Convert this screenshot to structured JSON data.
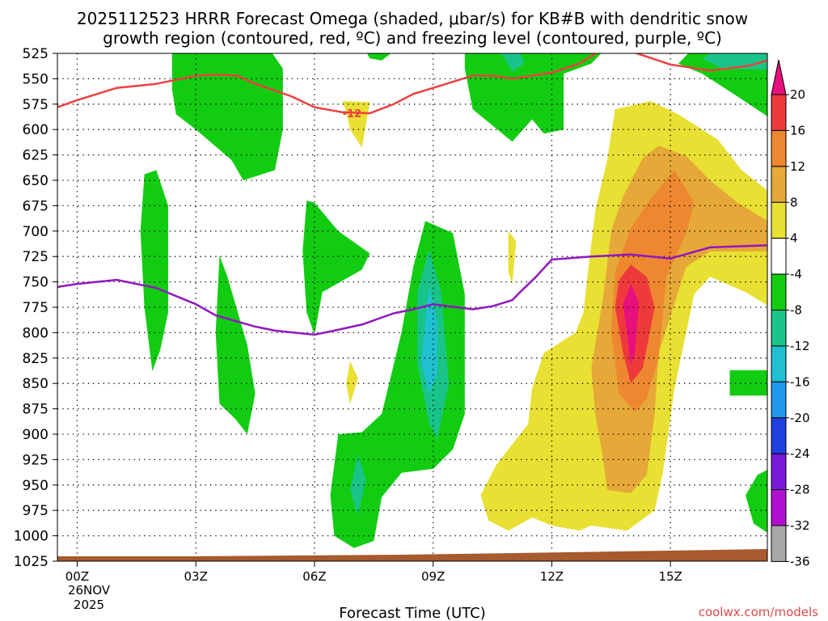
{
  "chart_data": {
    "type": "contour",
    "title_line1": "2025112523 HRRR Forecast Omega (shaded, μbar/s) for KB#B with dendritic snow",
    "title_line2": "growth region (contoured, red, ºC) and freezing level (contoured, purple, ºC)",
    "xlabel": "Forecast Time (UTC)",
    "credit": "coolwx.com/models",
    "x_ticks": [
      {
        "hour": 0,
        "label": "00Z"
      },
      {
        "hour": 3,
        "label": "03Z"
      },
      {
        "hour": 6,
        "label": "06Z"
      },
      {
        "hour": 9,
        "label": "09Z"
      },
      {
        "hour": 12,
        "label": "12Z"
      },
      {
        "hour": 15,
        "label": "15Z"
      }
    ],
    "x_date_line1": "26NOV",
    "x_date_line2": "2025",
    "x_range_hours": [
      -0.5,
      17.45
    ],
    "y_ticks": [
      525,
      550,
      575,
      600,
      625,
      650,
      675,
      700,
      725,
      750,
      775,
      800,
      825,
      850,
      875,
      900,
      925,
      950,
      975,
      1000,
      1025
    ],
    "y_range_hPa": [
      525,
      1025
    ],
    "colorbar": {
      "labels": [
        "20",
        "16",
        "12",
        "8",
        "4",
        "-4",
        "-8",
        "-12",
        "-16",
        "-20",
        "-24",
        "-28",
        "-32",
        "-36"
      ],
      "bins": [
        {
          "lo": 20,
          "hi": 24,
          "color": "#e8107c"
        },
        {
          "lo": 16,
          "hi": 20,
          "color": "#ee3a3a"
        },
        {
          "lo": 12,
          "hi": 16,
          "color": "#ee8830"
        },
        {
          "lo": 8,
          "hi": 12,
          "color": "#e6a838"
        },
        {
          "lo": 4,
          "hi": 8,
          "color": "#e8e032"
        },
        {
          "lo": -4,
          "hi": 4,
          "color": "#ffffff"
        },
        {
          "lo": -8,
          "hi": -4,
          "color": "#12cc12"
        },
        {
          "lo": -12,
          "hi": -8,
          "color": "#18c488"
        },
        {
          "lo": -16,
          "hi": -12,
          "color": "#20c0d2"
        },
        {
          "lo": -20,
          "hi": -16,
          "color": "#2098ee"
        },
        {
          "lo": -24,
          "hi": -20,
          "color": "#2040e0"
        },
        {
          "lo": -28,
          "hi": -24,
          "color": "#7818d8"
        },
        {
          "lo": -32,
          "hi": -28,
          "color": "#b010d0"
        },
        {
          "lo": -36,
          "hi": -32,
          "color": "#a8a8a8"
        }
      ]
    },
    "dgz_contour": {
      "color": "#ee4040",
      "value_label": "-12",
      "label_at": [
        6.95,
        584
      ],
      "segments": [
        [
          [
            -0.5,
            578
          ],
          [
            0,
            571
          ],
          [
            1,
            559
          ],
          [
            2,
            555
          ],
          [
            3,
            547
          ],
          [
            3.5,
            546
          ],
          [
            4.05,
            547
          ],
          [
            4.5,
            555
          ],
          [
            5.4,
            567
          ],
          [
            6.0,
            578
          ],
          [
            6.7,
            583
          ],
          [
            7.4,
            584
          ],
          [
            8.0,
            575
          ],
          [
            8.5,
            565
          ],
          [
            9.0,
            559
          ],
          [
            10.0,
            547
          ],
          [
            10.5,
            547
          ],
          [
            11.0,
            550
          ],
          [
            12.0,
            544
          ],
          [
            12.7,
            535
          ],
          [
            13.2,
            523
          ]
        ],
        [
          [
            14.0,
            523
          ],
          [
            15.0,
            536
          ],
          [
            16.0,
            542
          ],
          [
            17.0,
            537
          ],
          [
            17.45,
            532
          ]
        ]
      ]
    },
    "freezing_level": {
      "color": "#9018c0",
      "points": [
        [
          -0.5,
          755
        ],
        [
          0,
          752
        ],
        [
          1,
          748
        ],
        [
          2,
          756
        ],
        [
          3,
          772
        ],
        [
          3.5,
          783
        ],
        [
          4.5,
          794
        ],
        [
          5.0,
          798
        ],
        [
          6.0,
          802
        ],
        [
          6.5,
          798
        ],
        [
          7.2,
          792
        ],
        [
          8.0,
          781
        ],
        [
          8.5,
          777
        ],
        [
          9.0,
          772
        ],
        [
          10.0,
          777
        ],
        [
          10.5,
          774
        ],
        [
          11.0,
          768
        ],
        [
          11.2,
          760
        ],
        [
          11.6,
          745
        ],
        [
          12.0,
          728
        ],
        [
          13.0,
          725
        ],
        [
          14.0,
          723
        ],
        [
          15.0,
          727
        ],
        [
          16.0,
          716
        ],
        [
          17.45,
          714
        ]
      ]
    },
    "omega_regions": [
      {
        "value": -6,
        "poly": [
          [
            2.4,
            523
          ],
          [
            4.9,
            523
          ],
          [
            5.2,
            540
          ],
          [
            5.2,
            600
          ],
          [
            5.0,
            640
          ],
          [
            4.2,
            650
          ],
          [
            3.9,
            630
          ],
          [
            3.0,
            600
          ],
          [
            2.5,
            585
          ],
          [
            2.4,
            560
          ]
        ]
      },
      {
        "value": -6,
        "poly": [
          [
            7.3,
            523
          ],
          [
            8.0,
            523
          ],
          [
            7.7,
            532
          ],
          [
            7.4,
            530
          ]
        ]
      },
      {
        "value": -6,
        "poly": [
          [
            9.8,
            523
          ],
          [
            13.3,
            523
          ],
          [
            13.0,
            535
          ],
          [
            12.3,
            545
          ],
          [
            12.3,
            600
          ],
          [
            11.8,
            604
          ],
          [
            11.5,
            590
          ],
          [
            11.0,
            612
          ],
          [
            10.0,
            580
          ],
          [
            9.8,
            540
          ]
        ]
      },
      {
        "value": -10,
        "poly": [
          [
            10.7,
            523
          ],
          [
            11.2,
            523
          ],
          [
            11.3,
            535
          ],
          [
            11.0,
            543
          ],
          [
            10.8,
            530
          ]
        ]
      },
      {
        "value": -6,
        "poly": [
          [
            16.7,
            523
          ],
          [
            17.45,
            523
          ],
          [
            17.45,
            587
          ],
          [
            16.6,
            565
          ],
          [
            15.8,
            545
          ],
          [
            15.2,
            535
          ],
          [
            15.5,
            523
          ]
        ]
      },
      {
        "value": -10,
        "poly": [
          [
            16.1,
            523
          ],
          [
            17.45,
            523
          ],
          [
            17.45,
            541
          ],
          [
            16.3,
            540
          ],
          [
            15.8,
            530
          ]
        ]
      },
      {
        "value": -6,
        "poly": [
          [
            1.7,
            644
          ],
          [
            2.0,
            640
          ],
          [
            2.3,
            675
          ],
          [
            2.3,
            780
          ],
          [
            2.1,
            817
          ],
          [
            1.9,
            838
          ],
          [
            1.7,
            775
          ],
          [
            1.6,
            700
          ]
        ]
      },
      {
        "value": -6,
        "poly": [
          [
            3.6,
            724
          ],
          [
            3.8,
            745
          ],
          [
            4.3,
            812
          ],
          [
            4.5,
            860
          ],
          [
            4.3,
            900
          ],
          [
            4.0,
            885
          ],
          [
            3.6,
            870
          ],
          [
            3.5,
            800
          ]
        ]
      },
      {
        "value": -6,
        "poly": [
          [
            5.8,
            670
          ],
          [
            6.0,
            672
          ],
          [
            6.6,
            700
          ],
          [
            7.4,
            722
          ],
          [
            7.2,
            738
          ],
          [
            6.2,
            760
          ],
          [
            6.0,
            802
          ],
          [
            5.8,
            780
          ],
          [
            5.7,
            720
          ]
        ]
      },
      {
        "value": -6,
        "poly": [
          [
            8.8,
            690
          ],
          [
            9.5,
            702
          ],
          [
            9.8,
            762
          ],
          [
            9.8,
            880
          ],
          [
            9.5,
            915
          ],
          [
            9.0,
            934
          ],
          [
            8.2,
            938
          ],
          [
            7.7,
            962
          ],
          [
            7.5,
            1005
          ],
          [
            7.0,
            1012
          ],
          [
            6.5,
            1000
          ],
          [
            6.4,
            960
          ],
          [
            6.6,
            900
          ],
          [
            7.2,
            898
          ],
          [
            7.7,
            880
          ],
          [
            8.2,
            800
          ],
          [
            8.5,
            735
          ]
        ]
      },
      {
        "value": -10,
        "poly": [
          [
            8.9,
            718
          ],
          [
            9.2,
            760
          ],
          [
            9.4,
            850
          ],
          [
            9.1,
            905
          ],
          [
            8.9,
            890
          ],
          [
            8.6,
            830
          ],
          [
            8.6,
            760
          ]
        ]
      },
      {
        "value": -14,
        "poly": [
          [
            8.9,
            755
          ],
          [
            9.1,
            790
          ],
          [
            9.1,
            840
          ],
          [
            8.9,
            860
          ],
          [
            8.7,
            830
          ],
          [
            8.8,
            790
          ]
        ]
      },
      {
        "value": -10,
        "poly": [
          [
            7.1,
            920
          ],
          [
            7.3,
            945
          ],
          [
            7.1,
            980
          ],
          [
            6.9,
            955
          ]
        ]
      },
      {
        "value": -6,
        "poly": [
          [
            16.5,
            837
          ],
          [
            17.45,
            837
          ],
          [
            17.45,
            862
          ],
          [
            16.5,
            862
          ]
        ]
      },
      {
        "value": -6,
        "poly": [
          [
            17.2,
            940
          ],
          [
            17.45,
            935
          ],
          [
            17.45,
            997
          ],
          [
            17.1,
            988
          ],
          [
            16.9,
            960
          ]
        ]
      },
      {
        "value": 6,
        "poly": [
          [
            6.7,
            572
          ],
          [
            7.4,
            573
          ],
          [
            7.3,
            595
          ],
          [
            7.2,
            618
          ],
          [
            6.9,
            600
          ],
          [
            6.8,
            582
          ]
        ]
      },
      {
        "value": 6,
        "poly": [
          [
            10.9,
            700
          ],
          [
            11.1,
            710
          ],
          [
            11.0,
            752
          ],
          [
            10.9,
            740
          ]
        ]
      },
      {
        "value": 6,
        "poly": [
          [
            6.9,
            828
          ],
          [
            7.1,
            845
          ],
          [
            6.9,
            870
          ],
          [
            6.8,
            850
          ]
        ]
      },
      {
        "value": 6,
        "poly": [
          [
            13.6,
            580
          ],
          [
            14.5,
            572
          ],
          [
            15.2,
            585
          ],
          [
            16.2,
            610
          ],
          [
            16.8,
            640
          ],
          [
            17.45,
            660
          ],
          [
            17.45,
            773
          ],
          [
            16.9,
            760
          ],
          [
            16.0,
            745
          ],
          [
            15.6,
            762
          ],
          [
            15.1,
            855
          ],
          [
            14.8,
            940
          ],
          [
            14.6,
            975
          ],
          [
            13.9,
            995
          ],
          [
            13.0,
            990
          ],
          [
            12.7,
            995
          ],
          [
            12.0,
            990
          ],
          [
            11.5,
            982
          ],
          [
            10.9,
            995
          ],
          [
            10.4,
            985
          ],
          [
            10.2,
            960
          ],
          [
            10.6,
            930
          ],
          [
            11.4,
            890
          ],
          [
            11.5,
            855
          ],
          [
            11.8,
            820
          ],
          [
            12.0,
            815
          ],
          [
            12.6,
            800
          ],
          [
            12.8,
            780
          ],
          [
            12.9,
            745
          ],
          [
            13.1,
            680
          ],
          [
            13.4,
            630
          ]
        ]
      },
      {
        "value": 10,
        "poly": [
          [
            14.7,
            616
          ],
          [
            15.4,
            626
          ],
          [
            16.0,
            650
          ],
          [
            16.7,
            672
          ],
          [
            17.45,
            690
          ],
          [
            17.45,
            720
          ],
          [
            16.4,
            720
          ],
          [
            16.0,
            720
          ],
          [
            15.4,
            735
          ],
          [
            14.7,
            820
          ],
          [
            14.6,
            880
          ],
          [
            14.4,
            940
          ],
          [
            14.0,
            958
          ],
          [
            13.4,
            955
          ],
          [
            13.3,
            925
          ],
          [
            13.1,
            880
          ],
          [
            13.0,
            835
          ],
          [
            13.3,
            765
          ],
          [
            13.5,
            700
          ],
          [
            13.8,
            666
          ],
          [
            14.3,
            628
          ]
        ]
      },
      {
        "value": 14,
        "poly": [
          [
            15.1,
            640
          ],
          [
            15.6,
            672
          ],
          [
            15.4,
            702
          ],
          [
            14.9,
            745
          ],
          [
            14.7,
            825
          ],
          [
            14.4,
            865
          ],
          [
            14.1,
            878
          ],
          [
            13.7,
            860
          ],
          [
            13.5,
            800
          ],
          [
            13.6,
            740
          ],
          [
            14.0,
            697
          ],
          [
            14.5,
            668
          ]
        ]
      },
      {
        "value": 18,
        "poly": [
          [
            14.0,
            733
          ],
          [
            14.4,
            745
          ],
          [
            14.6,
            775
          ],
          [
            14.3,
            835
          ],
          [
            14.0,
            850
          ],
          [
            13.8,
            820
          ],
          [
            13.6,
            775
          ],
          [
            13.7,
            748
          ]
        ]
      },
      {
        "value": 22,
        "poly": [
          [
            14.0,
            752
          ],
          [
            14.2,
            770
          ],
          [
            14.1,
            820
          ],
          [
            14.0,
            832
          ],
          [
            13.9,
            800
          ],
          [
            13.8,
            772
          ]
        ]
      }
    ]
  }
}
